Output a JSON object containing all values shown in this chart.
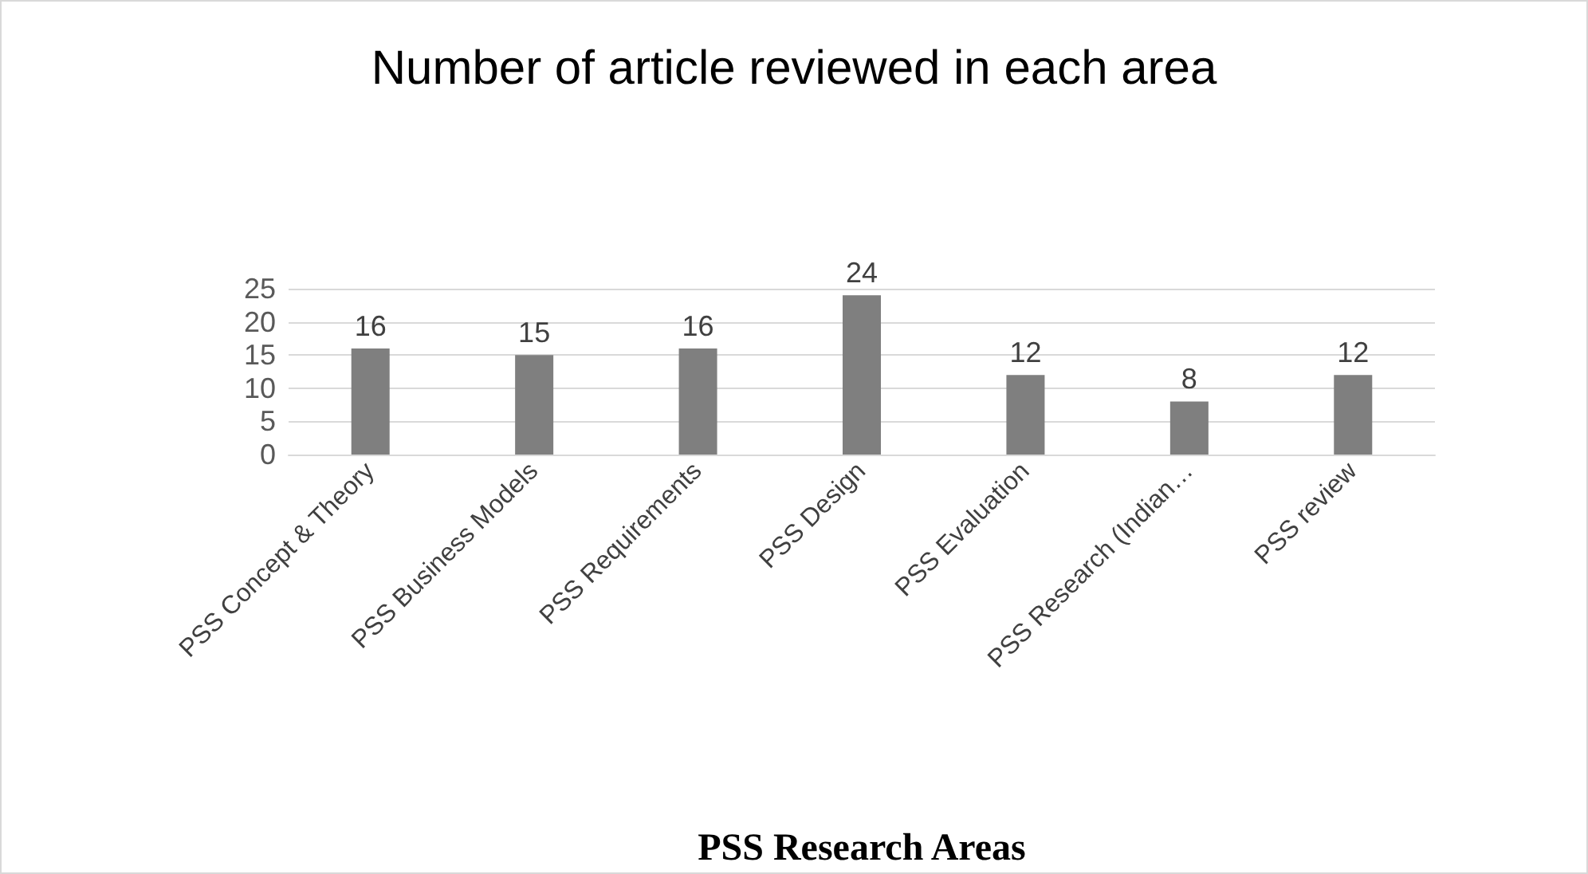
{
  "chart_data": {
    "type": "bar",
    "title": "Number of article reviewed in each area",
    "xlabel": "PSS Research Areas",
    "categories": [
      "PSS Concept & Theory",
      "PSS Business Models",
      "PSS Requirements",
      "PSS Design",
      "PSS Evaluation",
      "PSS Research (Indian…",
      "PSS review"
    ],
    "values": [
      16,
      15,
      16,
      24,
      12,
      8,
      12
    ],
    "color": "#7f7f7f",
    "ylim": [
      0,
      25
    ],
    "yticks": [
      0,
      5,
      10,
      15,
      20,
      25
    ],
    "grid": true,
    "data_labels": true
  }
}
